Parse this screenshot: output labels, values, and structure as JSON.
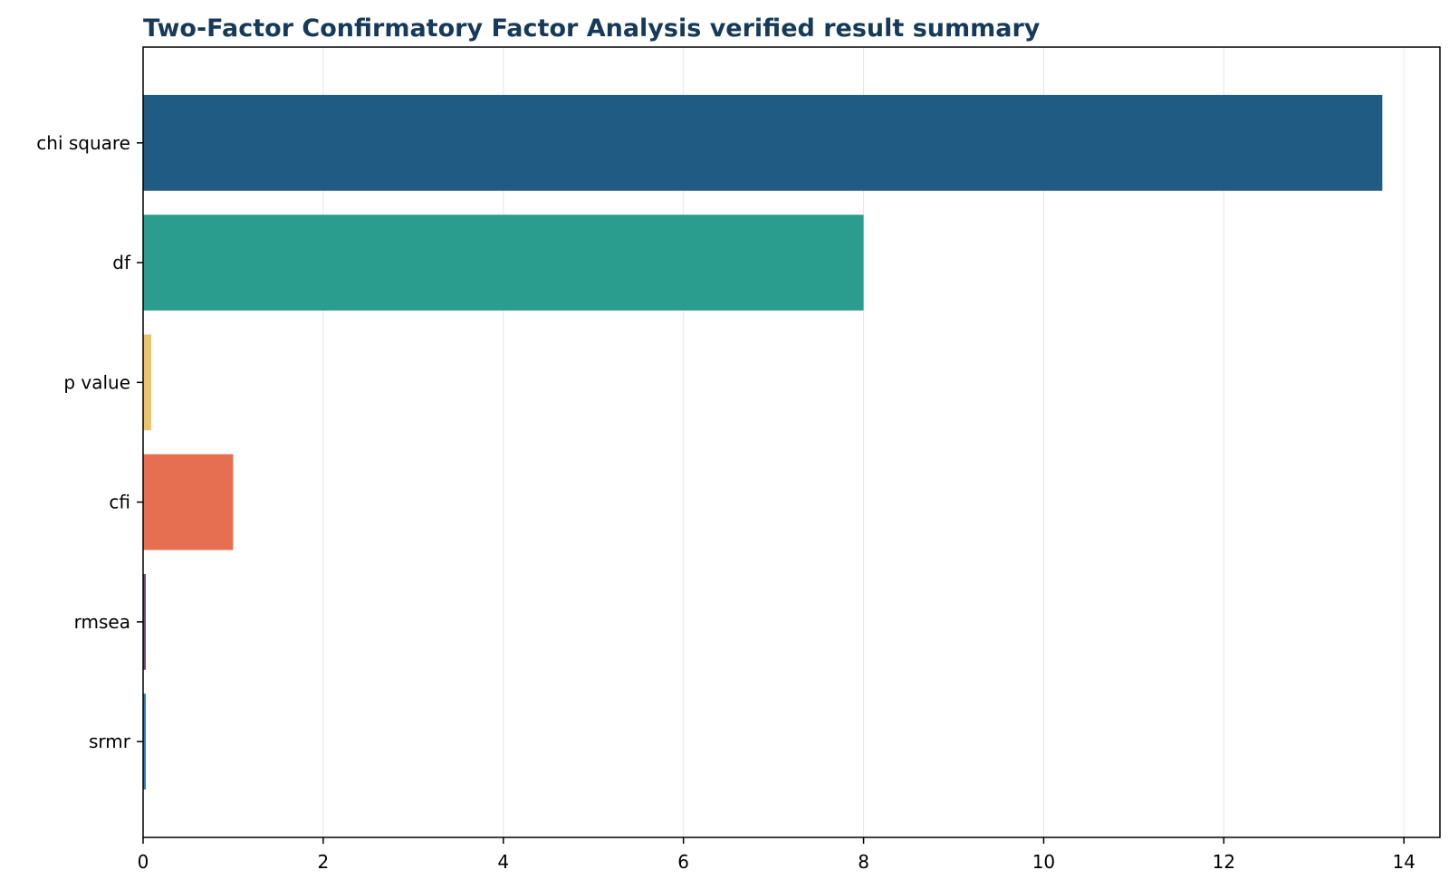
{
  "chart_data": {
    "type": "bar",
    "orientation": "horizontal",
    "title": "Two-Factor Confirmatory Factor Analysis verified result summary",
    "title_color": "#163a5a",
    "xlabel": "",
    "ylabel": "",
    "xlim": [
      0,
      14.4
    ],
    "x_ticks": [
      0,
      2,
      4,
      6,
      8,
      10,
      12,
      14
    ],
    "grid": "vertical",
    "legend": "none",
    "categories": [
      "chi square",
      "df",
      "p value",
      "cfi",
      "rmsea",
      "srmr"
    ],
    "values": [
      13.76,
      8,
      0.09,
      1.0,
      0.03,
      0.03
    ],
    "colors": [
      "#1f5b82",
      "#2a9d8f",
      "#e9c46a",
      "#e76f51",
      "#6d4c7a",
      "#2e7bbf"
    ]
  }
}
